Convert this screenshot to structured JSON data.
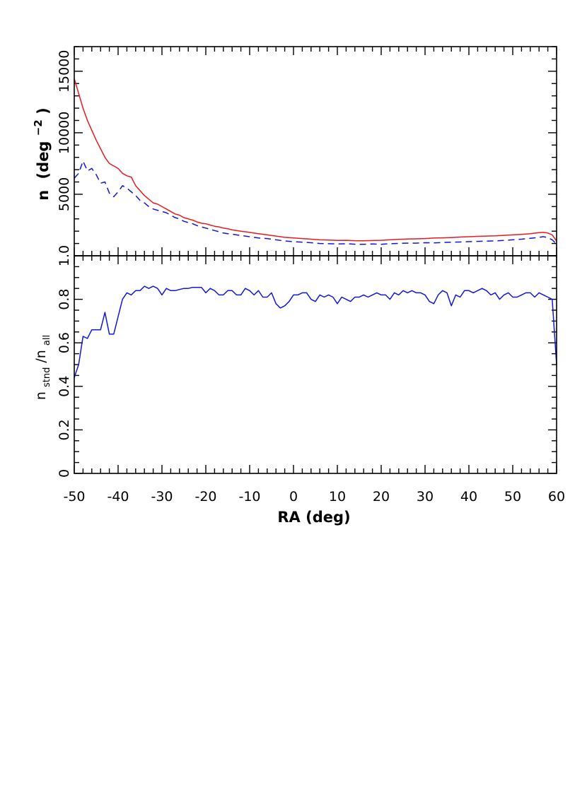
{
  "chart_data": [
    {
      "type": "line",
      "panel": "top",
      "title": "",
      "xlabel": "",
      "ylabel_main": "n",
      "ylabel_unit": "(deg",
      "ylabel_exp": "−2",
      "ylabel_close": ")",
      "xlim": [
        -50,
        60
      ],
      "ylim": [
        0,
        17000
      ],
      "yticks": [
        5000,
        10000,
        15000
      ],
      "ytick_labels": [
        "5000",
        "10000",
        "15000"
      ],
      "grid": false,
      "legend": "none",
      "series": [
        {
          "color": "#e8191f",
          "linestyle": "solid",
          "x": [
            -50,
            -49,
            -48,
            -47,
            -46,
            -45,
            -44,
            -43,
            -42,
            -41,
            -40,
            -39,
            -38,
            -37,
            -36,
            -35,
            -34,
            -33,
            -32,
            -31,
            -30,
            -29,
            -28,
            -27,
            -26,
            -25,
            -24,
            -23,
            -22,
            -21,
            -20,
            -19,
            -18,
            -17,
            -16,
            -15,
            -14,
            -13,
            -12,
            -11,
            -10,
            -8,
            -6,
            -4,
            -2,
            0,
            2,
            4,
            6,
            8,
            10,
            12,
            14,
            16,
            18,
            20,
            22,
            24,
            26,
            28,
            30,
            32,
            34,
            36,
            38,
            40,
            42,
            44,
            46,
            48,
            50,
            52,
            54,
            56,
            57,
            58,
            59,
            60
          ],
          "y": [
            14400,
            13200,
            12000,
            11000,
            10200,
            9400,
            8700,
            8000,
            7500,
            7300,
            7100,
            6700,
            6500,
            6400,
            5700,
            5300,
            4900,
            4600,
            4300,
            4200,
            4000,
            3800,
            3600,
            3400,
            3300,
            3100,
            3000,
            2900,
            2750,
            2650,
            2600,
            2500,
            2400,
            2350,
            2250,
            2200,
            2100,
            2050,
            2000,
            1950,
            1900,
            1800,
            1700,
            1600,
            1500,
            1450,
            1400,
            1350,
            1300,
            1280,
            1250,
            1260,
            1230,
            1220,
            1240,
            1260,
            1300,
            1330,
            1360,
            1380,
            1400,
            1440,
            1460,
            1480,
            1520,
            1550,
            1580,
            1600,
            1620,
            1660,
            1700,
            1740,
            1800,
            1880,
            1900,
            1850,
            1700,
            1200
          ]
        },
        {
          "color": "#1018d8",
          "linestyle": "dashed",
          "x": [
            -50,
            -49,
            -48,
            -47,
            -46,
            -45,
            -44,
            -43,
            -42,
            -41,
            -40,
            -39,
            -38,
            -37,
            -36,
            -35,
            -34,
            -33,
            -32,
            -31,
            -30,
            -29,
            -28,
            -27,
            -26,
            -25,
            -24,
            -23,
            -22,
            -21,
            -20,
            -19,
            -18,
            -17,
            -16,
            -15,
            -14,
            -13,
            -12,
            -11,
            -10,
            -8,
            -6,
            -4,
            -2,
            0,
            2,
            4,
            6,
            8,
            10,
            12,
            14,
            16,
            18,
            20,
            22,
            24,
            26,
            28,
            30,
            32,
            34,
            36,
            38,
            40,
            42,
            44,
            46,
            48,
            50,
            52,
            54,
            56,
            57,
            58,
            59,
            60
          ],
          "y": [
            6300,
            6700,
            7700,
            6900,
            7100,
            6600,
            5900,
            6000,
            5100,
            4800,
            5200,
            5700,
            5500,
            5200,
            4900,
            4500,
            4300,
            4000,
            3800,
            3700,
            3600,
            3500,
            3300,
            3100,
            3000,
            2800,
            2700,
            2600,
            2450,
            2350,
            2250,
            2150,
            2050,
            1950,
            1850,
            1800,
            1750,
            1700,
            1650,
            1600,
            1550,
            1450,
            1400,
            1300,
            1200,
            1150,
            1100,
            1060,
            1000,
            980,
            960,
            980,
            940,
            930,
            960,
            930,
            980,
            1010,
            1030,
            1030,
            1060,
            1050,
            1080,
            1100,
            1120,
            1150,
            1170,
            1190,
            1210,
            1250,
            1300,
            1350,
            1420,
            1500,
            1550,
            1480,
            1300,
            950
          ]
        }
      ]
    },
    {
      "type": "line",
      "panel": "bottom",
      "title": "",
      "xlabel": "RA (deg)",
      "ylabel_n": "n",
      "ylabel_sub1": "stnd",
      "ylabel_slash": "/n",
      "ylabel_sub2": "all",
      "xlim": [
        -50,
        60
      ],
      "ylim": [
        0,
        1.0
      ],
      "xticks": [
        -50,
        -40,
        -30,
        -20,
        -10,
        0,
        10,
        20,
        30,
        40,
        50,
        60
      ],
      "xtick_labels": [
        "-50",
        "-40",
        "-30",
        "-20",
        "-10",
        "0",
        "10",
        "20",
        "30",
        "40",
        "50",
        "60"
      ],
      "yticks": [
        0,
        0.2,
        0.4,
        0.6,
        0.8,
        1.0
      ],
      "ytick_labels": [
        "0",
        "0.2",
        "0.4",
        "0.6",
        "0.8",
        "1.0"
      ],
      "grid": false,
      "legend": "none",
      "series": [
        {
          "color": "#1018d8",
          "linestyle": "solid",
          "x": [
            -50,
            -49,
            -48,
            -47,
            -46,
            -45,
            -44,
            -43,
            -42,
            -41,
            -40,
            -39,
            -38,
            -37,
            -36,
            -35,
            -34,
            -33,
            -32,
            -31,
            -30,
            -29,
            -28,
            -27,
            -26,
            -25,
            -24,
            -23,
            -22,
            -21,
            -20,
            -19,
            -18,
            -17,
            -16,
            -15,
            -14,
            -13,
            -12,
            -11,
            -10,
            -9,
            -8,
            -7,
            -6,
            -5,
            -4,
            -3,
            -2,
            -1,
            0,
            1,
            2,
            3,
            4,
            5,
            6,
            7,
            8,
            9,
            10,
            11,
            12,
            13,
            14,
            15,
            16,
            17,
            18,
            19,
            20,
            21,
            22,
            23,
            24,
            25,
            26,
            27,
            28,
            29,
            30,
            31,
            32,
            33,
            34,
            35,
            36,
            37,
            38,
            39,
            40,
            41,
            42,
            43,
            44,
            45,
            46,
            47,
            48,
            49,
            50,
            51,
            52,
            53,
            54,
            55,
            56,
            57,
            58,
            59,
            60
          ],
          "y": [
            0.44,
            0.5,
            0.63,
            0.62,
            0.66,
            0.66,
            0.66,
            0.74,
            0.64,
            0.64,
            0.72,
            0.8,
            0.83,
            0.82,
            0.84,
            0.84,
            0.86,
            0.85,
            0.86,
            0.85,
            0.82,
            0.85,
            0.84,
            0.84,
            0.845,
            0.85,
            0.85,
            0.855,
            0.855,
            0.855,
            0.83,
            0.85,
            0.84,
            0.82,
            0.82,
            0.84,
            0.84,
            0.82,
            0.82,
            0.85,
            0.84,
            0.82,
            0.84,
            0.81,
            0.81,
            0.83,
            0.78,
            0.76,
            0.77,
            0.79,
            0.82,
            0.82,
            0.83,
            0.83,
            0.8,
            0.79,
            0.82,
            0.81,
            0.82,
            0.81,
            0.78,
            0.81,
            0.8,
            0.79,
            0.81,
            0.81,
            0.82,
            0.81,
            0.82,
            0.83,
            0.82,
            0.82,
            0.8,
            0.83,
            0.82,
            0.84,
            0.83,
            0.84,
            0.83,
            0.83,
            0.82,
            0.79,
            0.78,
            0.82,
            0.84,
            0.83,
            0.77,
            0.82,
            0.81,
            0.84,
            0.84,
            0.83,
            0.84,
            0.85,
            0.84,
            0.82,
            0.83,
            0.8,
            0.82,
            0.83,
            0.81,
            0.81,
            0.82,
            0.83,
            0.83,
            0.81,
            0.83,
            0.82,
            0.81,
            0.8,
            0.5
          ]
        }
      ]
    }
  ]
}
